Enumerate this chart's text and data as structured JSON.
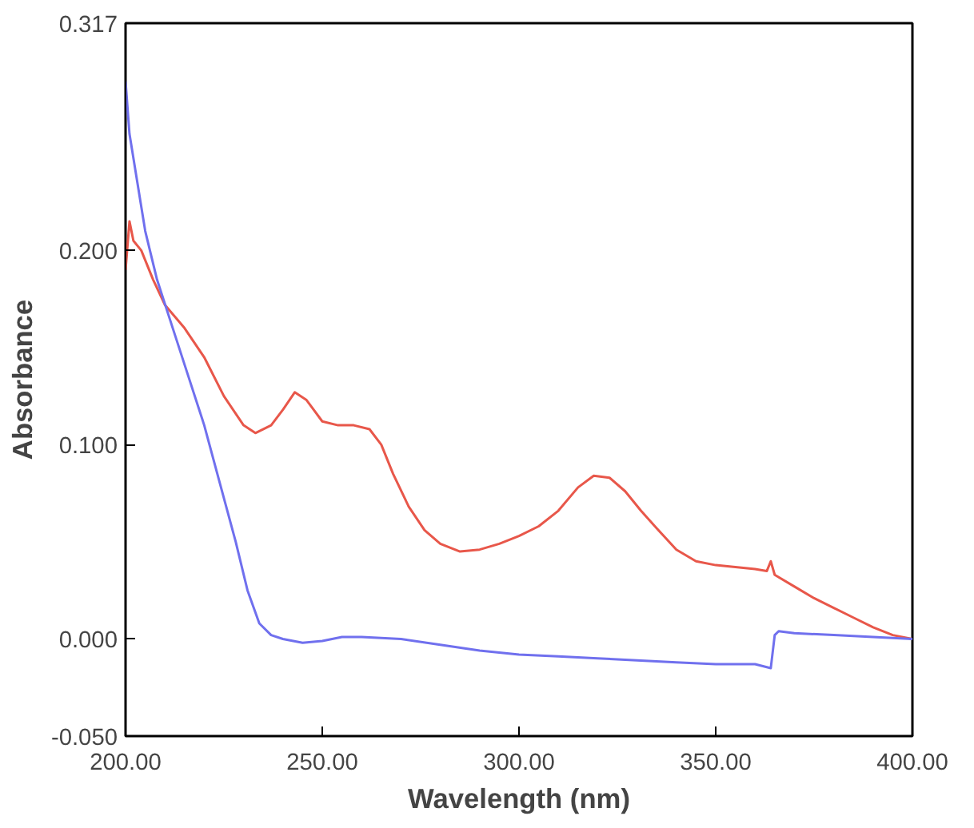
{
  "chart_data": {
    "type": "line",
    "xlabel": "Wavelength (nm)",
    "ylabel": "Absorbance",
    "xlim": [
      200,
      400
    ],
    "ylim": [
      -0.05,
      0.317
    ],
    "xticks": [
      {
        "value": 200,
        "label": "200.00"
      },
      {
        "value": 250,
        "label": "250.00"
      },
      {
        "value": 300,
        "label": "300.00"
      },
      {
        "value": 350,
        "label": "350.00"
      },
      {
        "value": 400,
        "label": "400.00"
      }
    ],
    "yticks": [
      {
        "value": -0.05,
        "label": "-0.050"
      },
      {
        "value": 0,
        "label": "0.000"
      },
      {
        "value": 0.1,
        "label": "0.100"
      },
      {
        "value": 0.2,
        "label": "0.200"
      },
      {
        "value": 0.317,
        "label": "0.317"
      }
    ],
    "grid": false,
    "series": [
      {
        "color": "#e8574a",
        "x": [
          200,
          201,
          202,
          204,
          207,
          210,
          215,
          220,
          225,
          230,
          233,
          237,
          240,
          243,
          246,
          250,
          254,
          258,
          262,
          265,
          268,
          272,
          276,
          280,
          285,
          290,
          295,
          300,
          305,
          310,
          315,
          319,
          323,
          327,
          331,
          335,
          340,
          345,
          350,
          355,
          360,
          363,
          364,
          365,
          370,
          375,
          380,
          385,
          390,
          395,
          400
        ],
        "values": [
          0.19,
          0.215,
          0.205,
          0.2,
          0.185,
          0.172,
          0.16,
          0.145,
          0.125,
          0.11,
          0.106,
          0.11,
          0.118,
          0.127,
          0.123,
          0.112,
          0.11,
          0.11,
          0.108,
          0.1,
          0.085,
          0.068,
          0.056,
          0.049,
          0.045,
          0.046,
          0.049,
          0.053,
          0.058,
          0.066,
          0.078,
          0.084,
          0.083,
          0.076,
          0.066,
          0.057,
          0.046,
          0.04,
          0.038,
          0.037,
          0.036,
          0.035,
          0.04,
          0.033,
          0.027,
          0.021,
          0.016,
          0.011,
          0.006,
          0.002,
          0.0
        ]
      },
      {
        "color": "#7070ee",
        "x": [
          200,
          201,
          203,
          205,
          208,
          212,
          216,
          220,
          224,
          228,
          231,
          234,
          237,
          240,
          245,
          250,
          255,
          260,
          270,
          280,
          290,
          300,
          310,
          320,
          330,
          340,
          350,
          360,
          364,
          365,
          366,
          370,
          380,
          390,
          400
        ],
        "values": [
          0.287,
          0.26,
          0.235,
          0.21,
          0.185,
          0.16,
          0.135,
          0.11,
          0.08,
          0.05,
          0.025,
          0.008,
          0.002,
          0.0,
          -0.002,
          -0.001,
          0.001,
          0.001,
          0.0,
          -0.003,
          -0.006,
          -0.008,
          -0.009,
          -0.01,
          -0.011,
          -0.012,
          -0.013,
          -0.013,
          -0.015,
          0.002,
          0.004,
          0.003,
          0.002,
          0.001,
          0.0
        ]
      }
    ]
  }
}
